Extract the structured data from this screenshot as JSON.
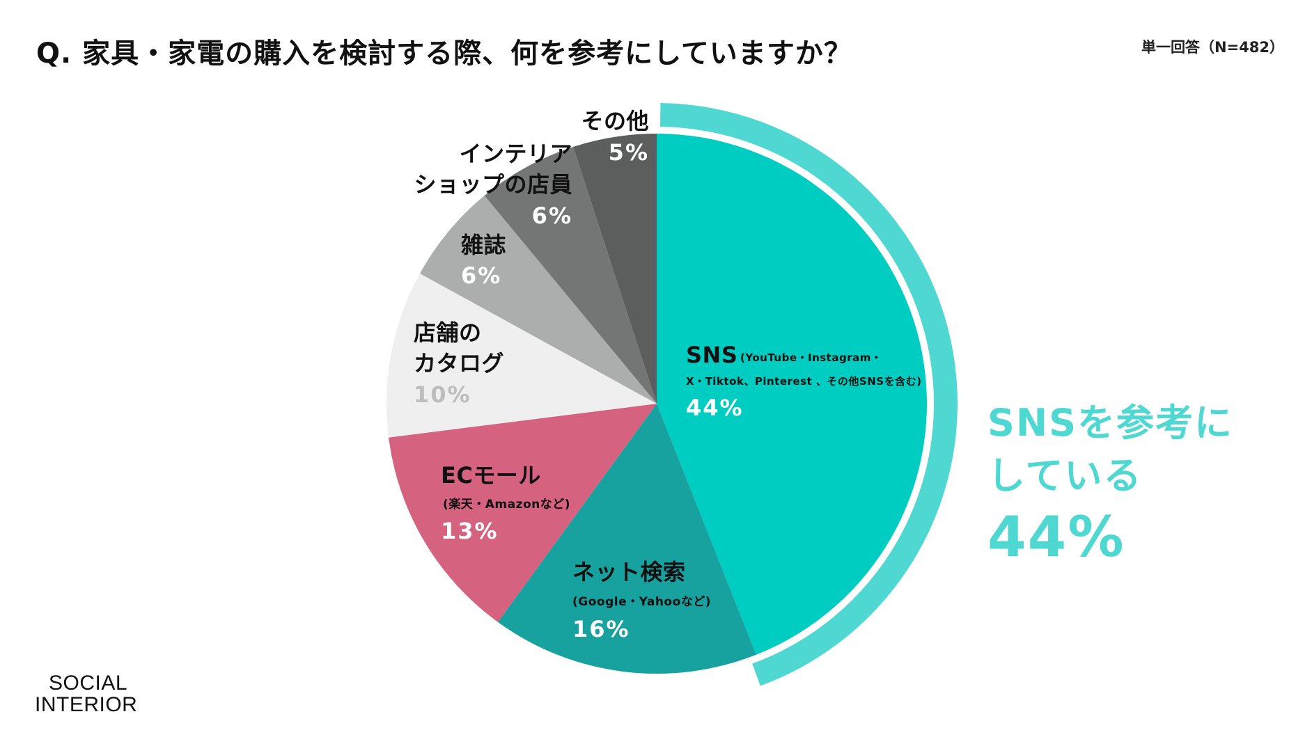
{
  "header": {
    "title": "Q. 家具・家電の購入を検討する際、何を参考にしていますか？",
    "note": "単一回答（N=482）"
  },
  "chart_data": {
    "type": "pie",
    "title": "Q. 家具・家電の購入を検討する際、何を参考にしていますか？",
    "note": "単一回答（N=482）",
    "slices": [
      {
        "label": "SNS",
        "sublabel_1": "(YouTube・Instagram・",
        "sublabel_2": "X・Tiktok、Pinterest 、その他SNSを含む)",
        "value": 44,
        "value_label": "44%",
        "color": "#00cdc1"
      },
      {
        "label": "ネット検索",
        "sublabel_1": "(Google・Yahooなど)",
        "value": 16,
        "value_label": "16%",
        "color": "#17a19f"
      },
      {
        "label": "ECモール",
        "sublabel_1": "(楽天・Amazonなど)",
        "value": 13,
        "value_label": "13%",
        "color": "#d56380"
      },
      {
        "label": "店舗の",
        "label_2": "カタログ",
        "value": 10,
        "value_label": "10%",
        "color": "#efefef"
      },
      {
        "label": "雑誌",
        "value": 6,
        "value_label": "6%",
        "color": "#acadad"
      },
      {
        "label": "インテリア",
        "label_2": "ショップの店員",
        "value": 6,
        "value_label": "6%",
        "color": "#747676"
      },
      {
        "label": "その他",
        "value": 5,
        "value_label": "5%",
        "color": "#5c5e5e"
      }
    ],
    "highlight_arc_color": "#4fd8d2"
  },
  "callout": {
    "line1": "SNSを参考に",
    "line2": "している",
    "value": "44%",
    "color": "#4fd8d2"
  },
  "logo": {
    "line1": "SOCIAL",
    "line2": "INTERIOR"
  }
}
